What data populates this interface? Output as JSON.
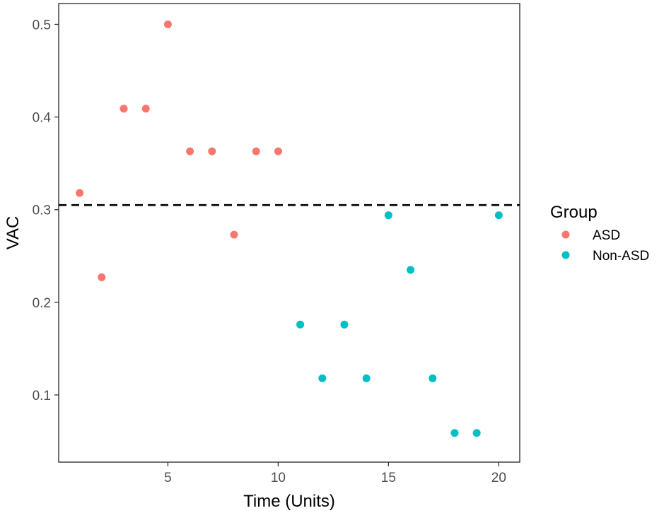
{
  "chart_data": {
    "type": "scatter",
    "xlabel": "Time (Units)",
    "ylabel": "VAC",
    "xlim": [
      0.05,
      20.95
    ],
    "ylim": [
      0.0275,
      0.5225
    ],
    "x_ticks": [
      5,
      10,
      15,
      20
    ],
    "x_tick_labels": [
      "5",
      "10",
      "15",
      "20"
    ],
    "y_ticks": [
      0.1,
      0.2,
      0.3,
      0.4,
      0.5
    ],
    "y_tick_labels": [
      "0.1",
      "0.2",
      "0.3",
      "0.4",
      "0.5"
    ],
    "grid": false,
    "reference_line": {
      "y": 0.305,
      "style": "dashed",
      "color": "#000000"
    },
    "legend": {
      "title": "Group",
      "position": "right"
    },
    "series": [
      {
        "name": "ASD",
        "color": "#F8766D",
        "points": [
          {
            "x": 1,
            "y": 0.318
          },
          {
            "x": 2,
            "y": 0.227
          },
          {
            "x": 3,
            "y": 0.409
          },
          {
            "x": 4,
            "y": 0.409
          },
          {
            "x": 5,
            "y": 0.5
          },
          {
            "x": 6,
            "y": 0.363
          },
          {
            "x": 7,
            "y": 0.363
          },
          {
            "x": 8,
            "y": 0.273
          },
          {
            "x": 9,
            "y": 0.363
          },
          {
            "x": 10,
            "y": 0.363
          }
        ]
      },
      {
        "name": "Non-ASD",
        "color": "#00BFC4",
        "points": [
          {
            "x": 11,
            "y": 0.176
          },
          {
            "x": 12,
            "y": 0.118
          },
          {
            "x": 13,
            "y": 0.176
          },
          {
            "x": 14,
            "y": 0.118
          },
          {
            "x": 15,
            "y": 0.294
          },
          {
            "x": 16,
            "y": 0.235
          },
          {
            "x": 17,
            "y": 0.118
          },
          {
            "x": 18,
            "y": 0.059
          },
          {
            "x": 19,
            "y": 0.059
          },
          {
            "x": 20,
            "y": 0.294
          }
        ]
      }
    ]
  }
}
